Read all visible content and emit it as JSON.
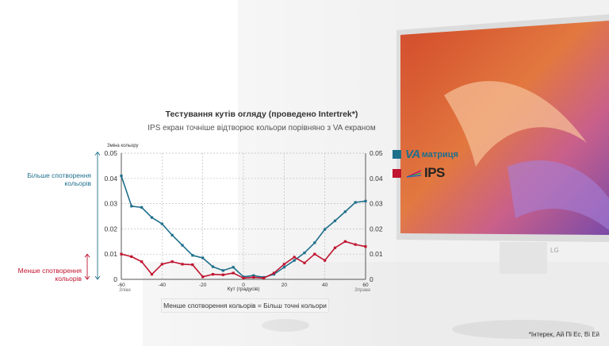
{
  "chart_data": {
    "type": "line",
    "title": "Тестування кутів огляду (проведено Intertrek*)",
    "subtitle": "IPS екран точніше відтворює кольори порівняно з VA екраном",
    "ylabel": "Зміна кольору",
    "xlabel": "Кут (градусів)",
    "x_left_label": "Зліва",
    "x_right_label": "Зправа",
    "xlim": [
      -60,
      60
    ],
    "ylim": [
      0,
      0.05
    ],
    "x_ticks": [
      "-60",
      "-40",
      "-20",
      "0",
      "20",
      "40",
      "60"
    ],
    "y_ticks": [
      "0",
      "0.01",
      "0.02",
      "0.03",
      "0.04",
      "0.05"
    ],
    "grid": true,
    "series": [
      {
        "name": "VA матриця",
        "color": "#1f6f8b",
        "x": [
          -60,
          -55,
          -50,
          -45,
          -40,
          -35,
          -30,
          -25,
          -20,
          -15,
          -10,
          -5,
          0,
          5,
          10,
          15,
          20,
          25,
          30,
          35,
          40,
          45,
          50,
          55,
          60
        ],
        "y": [
          0.041,
          0.029,
          0.0285,
          0.0245,
          0.022,
          0.0175,
          0.0135,
          0.0095,
          0.0085,
          0.005,
          0.0035,
          0.0048,
          0.001,
          0.0015,
          0.0008,
          0.002,
          0.0048,
          0.0075,
          0.0105,
          0.0145,
          0.0198,
          0.0232,
          0.0268,
          0.0305,
          0.031
        ]
      },
      {
        "name": "IPS",
        "color": "#c0142f",
        "x": [
          -60,
          -55,
          -50,
          -45,
          -40,
          -35,
          -30,
          -25,
          -20,
          -15,
          -10,
          -5,
          0,
          5,
          10,
          15,
          20,
          25,
          30,
          35,
          40,
          45,
          50,
          55,
          60
        ],
        "y": [
          0.01,
          0.009,
          0.007,
          0.002,
          0.006,
          0.007,
          0.006,
          0.0058,
          0.001,
          0.002,
          0.0018,
          0.0025,
          0.0005,
          0.0008,
          0.0005,
          0.0025,
          0.006,
          0.0088,
          0.0065,
          0.01,
          0.0075,
          0.0125,
          0.015,
          0.0138,
          0.013
        ]
      }
    ],
    "left_annotations": {
      "va": "Більше спотворення кольорів",
      "ips": "Менше спотворення кольорів"
    },
    "caption": "Менше спотворення кольорів = Більш точні кольори"
  },
  "legend": {
    "va_main": "VA",
    "va_sub": "матриця",
    "ips_label": "IPS"
  },
  "footnote": "*Інтерек, Ай Пі Ес, Ві Ей",
  "monitor_brand": "LG",
  "colors": {
    "va": "#1f6f8b",
    "ips": "#c0142f"
  }
}
